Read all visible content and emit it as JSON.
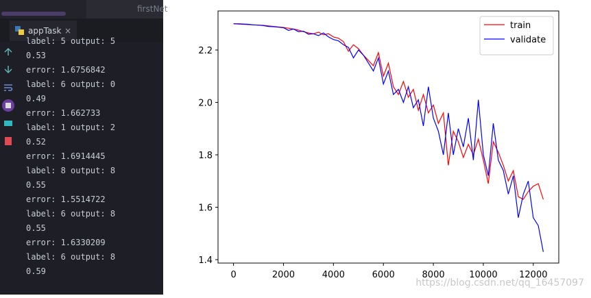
{
  "ide": {
    "editor_tab": "firstNet",
    "run_tab": "appTask",
    "console": [
      "label: 5 output: 5",
      "0.53",
      "error: 1.6756842",
      "label: 6 output: 0",
      "0.49",
      "error: 1.662733",
      "label: 1 output: 2",
      "0.52",
      "error: 1.6914445",
      "label: 8 output: 8",
      "0.55",
      "error: 1.5514722",
      "label: 6 output: 8",
      "0.55",
      "error: 1.6330209",
      "label: 6 output: 8",
      "0.59"
    ]
  },
  "chart_data": {
    "type": "line",
    "x": [
      0,
      200,
      400,
      600,
      800,
      1000,
      1200,
      1400,
      1600,
      1800,
      2000,
      2200,
      2400,
      2600,
      2800,
      3000,
      3200,
      3400,
      3600,
      3800,
      4000,
      4200,
      4400,
      4600,
      4800,
      5000,
      5200,
      5400,
      5600,
      5800,
      6000,
      6200,
      6400,
      6600,
      6800,
      7000,
      7200,
      7400,
      7600,
      7800,
      8000,
      8200,
      8400,
      8600,
      8800,
      9000,
      9200,
      9400,
      9600,
      9800,
      10000,
      10200,
      10400,
      10600,
      10800,
      11000,
      11200,
      11400,
      11600,
      11800,
      12000,
      12200,
      12400
    ],
    "series": [
      {
        "name": "train",
        "color": "#ff0000",
        "values": [
          2.3,
          2.299,
          2.298,
          2.297,
          2.296,
          2.295,
          2.294,
          2.292,
          2.29,
          2.288,
          2.286,
          2.283,
          2.28,
          2.276,
          2.27,
          2.265,
          2.262,
          2.268,
          2.258,
          2.262,
          2.25,
          2.245,
          2.232,
          2.195,
          2.22,
          2.205,
          2.18,
          2.16,
          2.14,
          2.19,
          2.1,
          2.15,
          2.06,
          2.03,
          2.08,
          2.02,
          2.05,
          1.97,
          2.03,
          1.96,
          1.99,
          1.92,
          1.96,
          1.76,
          1.89,
          1.85,
          1.79,
          1.84,
          1.8,
          1.86,
          1.78,
          1.69,
          1.85,
          1.81,
          1.76,
          1.7,
          1.74,
          1.64,
          1.63,
          1.66,
          1.68,
          1.69,
          1.63
        ]
      },
      {
        "name": "validate",
        "color": "#0000ff",
        "values": [
          2.3,
          2.3,
          2.299,
          2.298,
          2.296,
          2.295,
          2.293,
          2.29,
          2.289,
          2.287,
          2.285,
          2.275,
          2.28,
          2.27,
          2.272,
          2.26,
          2.262,
          2.255,
          2.265,
          2.25,
          2.24,
          2.235,
          2.22,
          2.21,
          2.17,
          2.2,
          2.18,
          2.15,
          2.12,
          2.17,
          2.07,
          2.12,
          2.03,
          2.05,
          2.0,
          2.06,
          1.98,
          2.01,
          1.91,
          2.06,
          1.94,
          1.89,
          1.8,
          1.96,
          1.8,
          1.9,
          1.83,
          1.94,
          1.78,
          2.01,
          1.8,
          1.72,
          1.92,
          1.78,
          1.74,
          1.65,
          1.72,
          1.56,
          1.65,
          1.7,
          1.56,
          1.53,
          1.43
        ]
      }
    ],
    "xlim": [
      -620,
      13020
    ],
    "ylim": [
      1.387,
      2.349
    ],
    "xticks": [
      0,
      2000,
      4000,
      6000,
      8000,
      10000,
      12000
    ],
    "yticks": [
      1.4,
      1.6,
      1.8,
      {
        "value": 2.0,
        "label": "2.0"
      },
      2.2
    ],
    "legend": "upper right",
    "watermark": "https://blog.csdn.net/qq_16457097"
  }
}
